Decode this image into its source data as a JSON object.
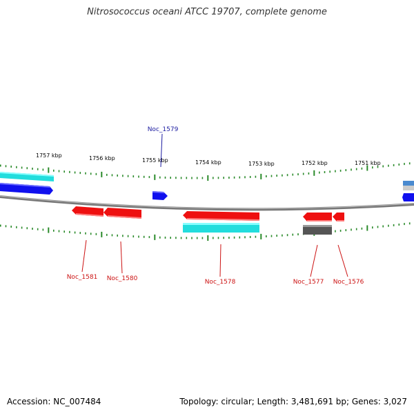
{
  "title": "Nitrosococcus oceani ATCC 19707, complete genome",
  "footer": {
    "accession": "Accession: NC_007484",
    "summary": "Topology: circular; Length: 3,481,691 bp; Genes: 3,027"
  },
  "colors": {
    "forward_gene": "#1010ee",
    "reverse_gene": "#ee1010",
    "cds_highlight": "#22dddd",
    "rna_gene": "#555555",
    "tick": "#2a8a2a",
    "backbone": "#777777",
    "forward_label": "#1a1aa0",
    "reverse_label": "#cc1111"
  },
  "scale_labels": [
    "1757 kbp",
    "1756 kbp",
    "1755 kbp",
    "1754 kbp",
    "1753 kbp",
    "1752 kbp",
    "1751 kbp"
  ],
  "gene_labels": {
    "top": [
      "Noc_1579"
    ],
    "bottom": [
      "Noc_1581",
      "Noc_1580",
      "Noc_1578",
      "Noc_1577",
      "Noc_1576"
    ]
  }
}
